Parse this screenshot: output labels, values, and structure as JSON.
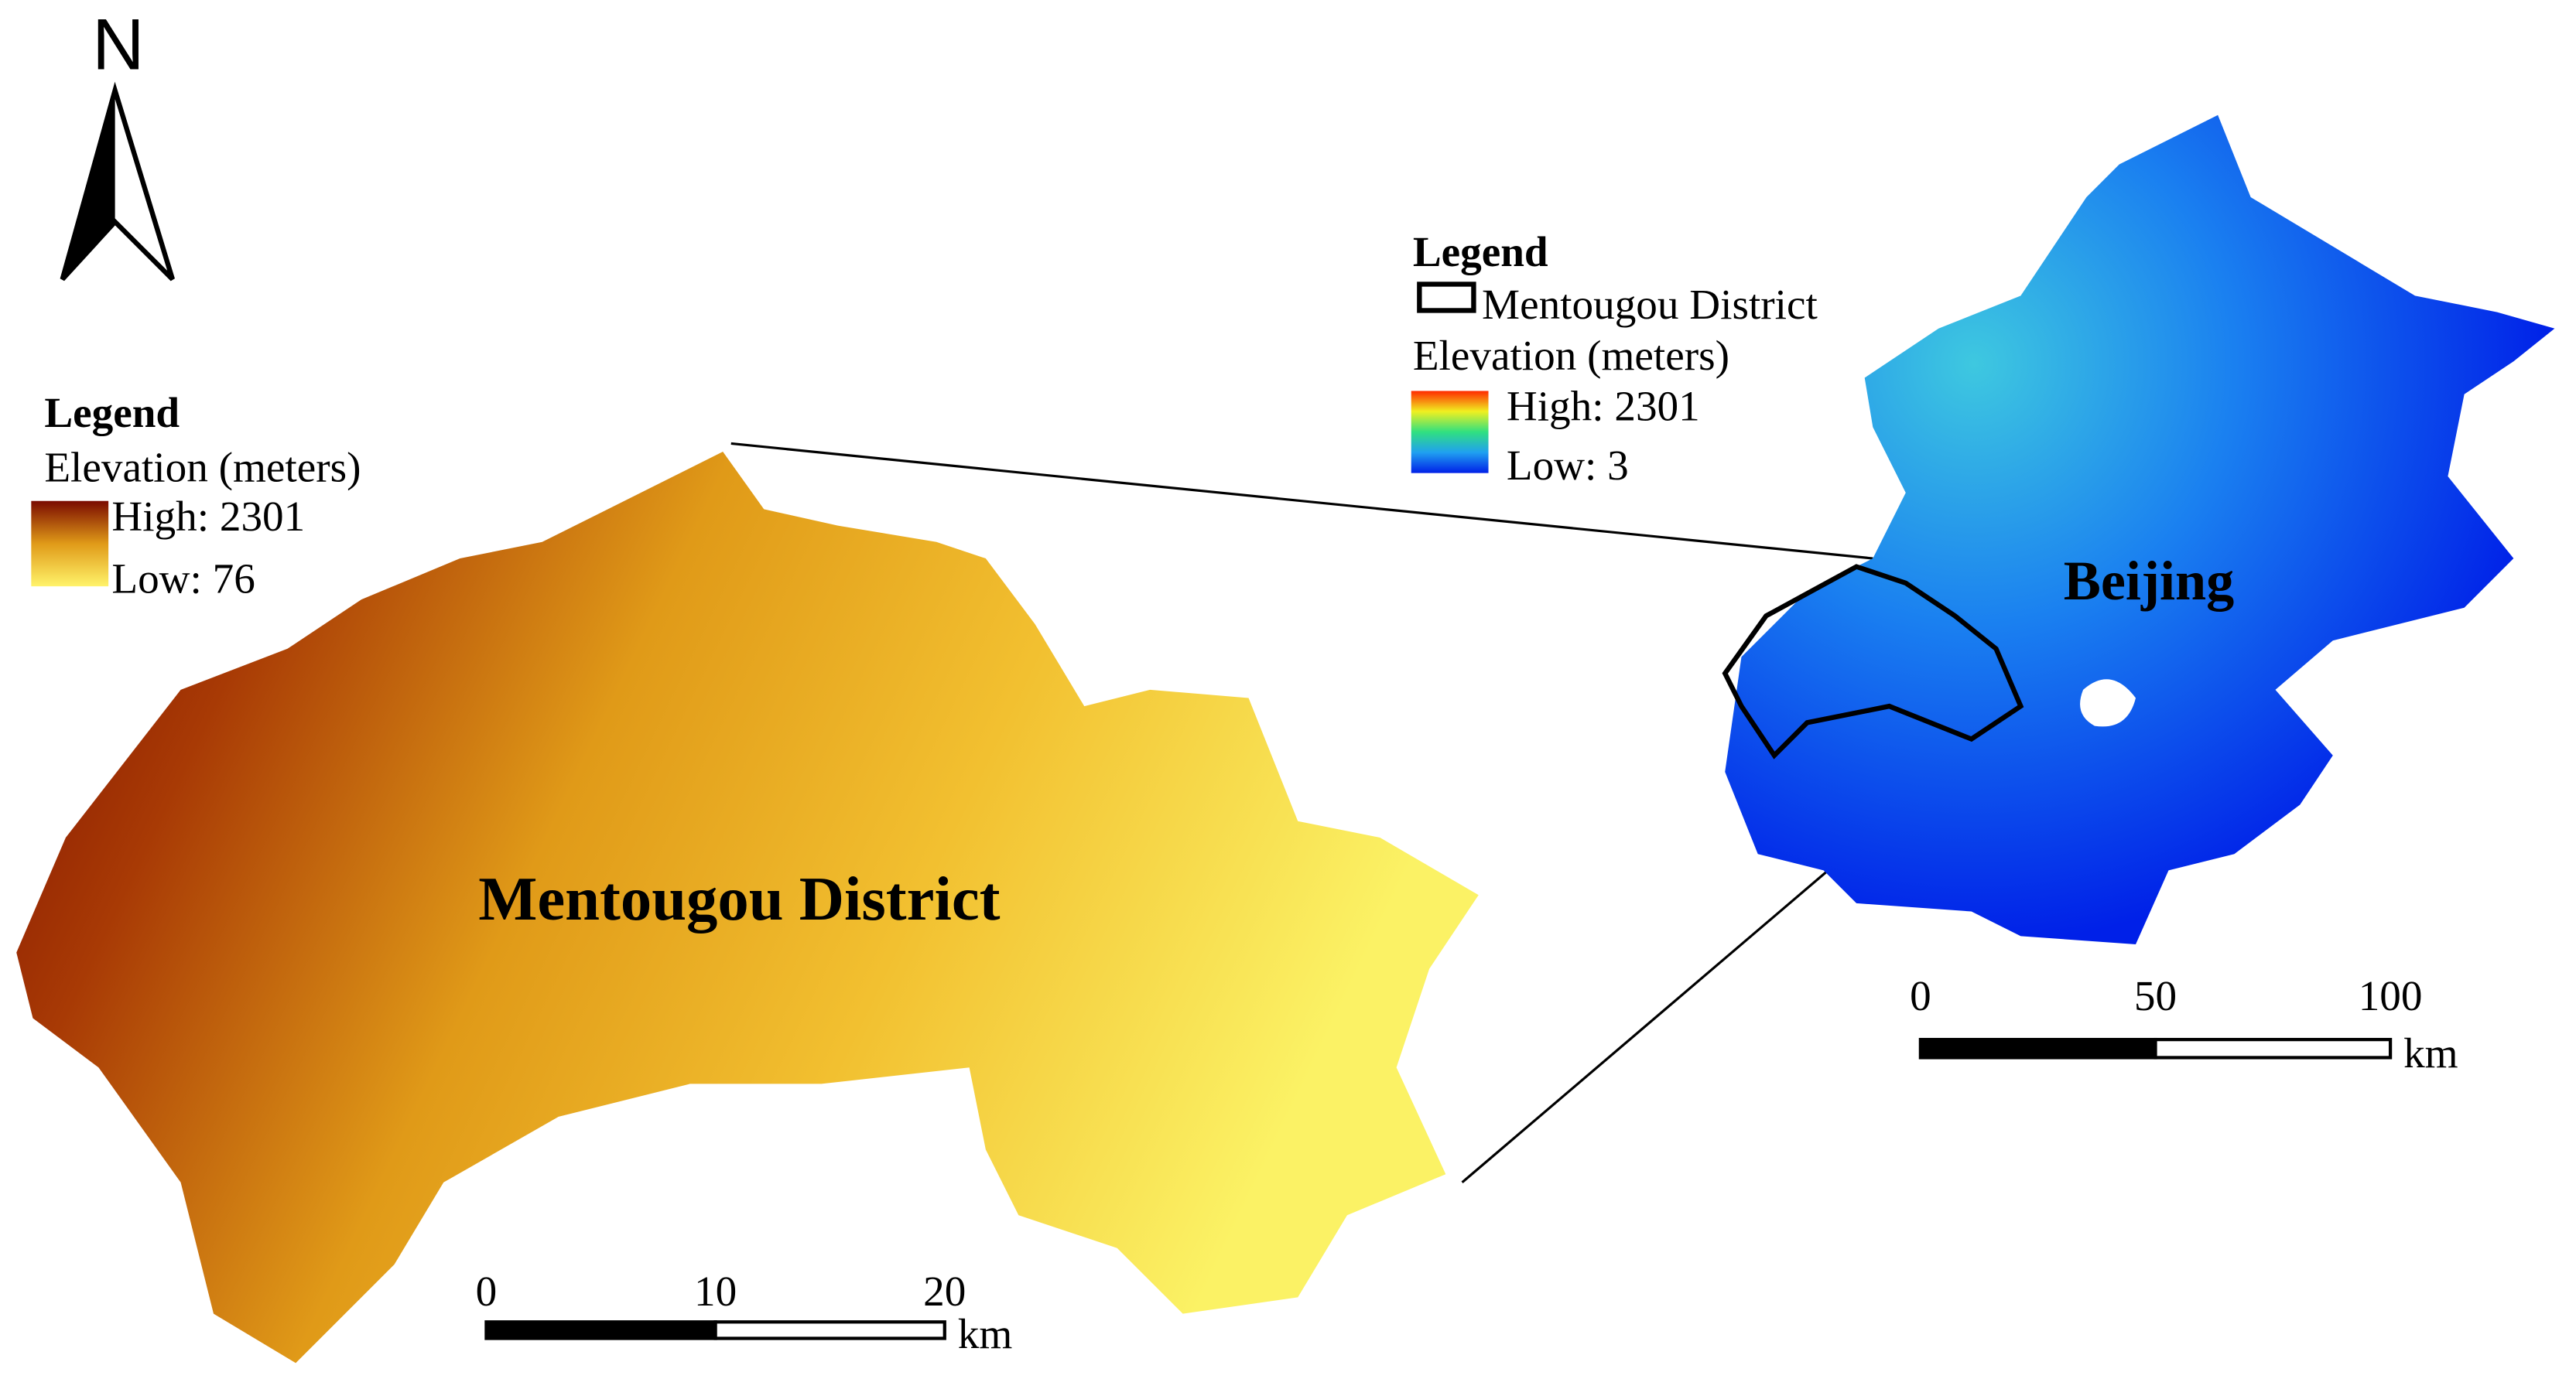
{
  "north_arrow": {
    "label": "N"
  },
  "mentougou_map": {
    "label": "Mentougou District",
    "legend": {
      "title": "Legend",
      "subtitle": "Elevation (meters)",
      "high": "High: 2301",
      "low": "Low: 76"
    },
    "scale_bar": {
      "ticks": [
        0,
        10,
        20
      ],
      "unit": "km"
    }
  },
  "beijing_map": {
    "label": "Beijing",
    "legend": {
      "title": "Legend",
      "boundary": "Mentougou District",
      "subtitle": "Elevation (meters)",
      "high": "High: 2301",
      "low": "Low: 3"
    },
    "scale_bar": {
      "ticks": [
        0,
        50,
        100
      ],
      "unit": "km"
    }
  }
}
